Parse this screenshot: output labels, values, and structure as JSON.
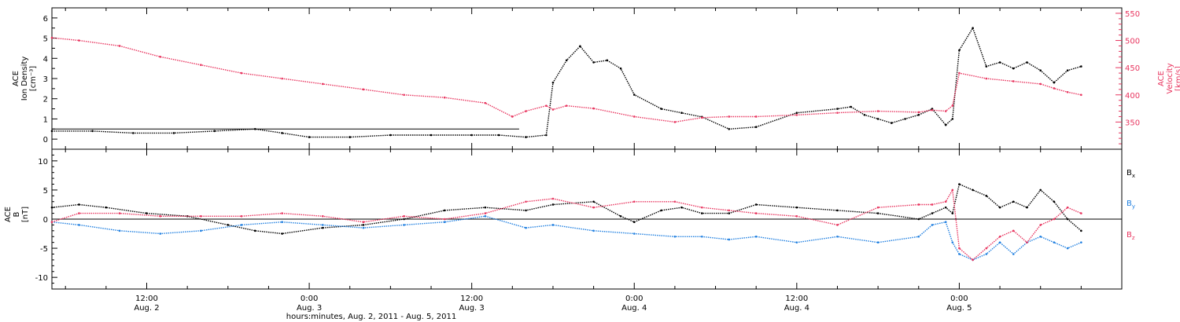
{
  "colors": {
    "black": "#000000",
    "velocity": "#e8355f",
    "bx": "#000000",
    "by": "#1f7fe0",
    "bz": "#e8355f"
  },
  "xaxis": {
    "title": "hours:minutes, Aug.  2, 2011 - Aug.  5, 2011",
    "start_hours": 5.0,
    "end_hours": 84.0
  },
  "chart_data": [
    {
      "type": "scatter",
      "panel": "top",
      "ylabel_left": [
        "ACE",
        "Ion Density",
        "[cm⁻³]"
      ],
      "ylabel_right": [
        "ACE",
        "Velocity",
        "[km/s]"
      ],
      "ylim_left": [
        -0.5,
        6.5
      ],
      "ylim_right": [
        300,
        560
      ],
      "left_ticks": [
        "0",
        "1",
        "2",
        "3",
        "4",
        "5",
        "6"
      ],
      "right_ticks": [
        "350",
        "400",
        "450",
        "500",
        "550"
      ],
      "series": [
        {
          "name": "Ion Density",
          "axis": "left",
          "x": [
            5,
            8,
            11,
            14,
            17,
            20,
            22,
            24,
            27,
            30,
            33,
            36,
            38,
            40,
            41.5,
            42,
            43,
            44,
            45,
            46,
            47,
            48,
            50,
            51.5,
            53,
            55,
            57,
            60,
            63,
            64,
            65,
            66,
            67,
            68,
            69,
            70,
            71,
            71.5,
            72,
            73,
            74,
            75,
            76,
            77,
            78,
            79,
            80,
            81
          ],
          "y": [
            0.4,
            0.4,
            0.3,
            0.3,
            0.4,
            0.5,
            0.3,
            0.1,
            0.1,
            0.2,
            0.2,
            0.2,
            0.2,
            0.1,
            0.2,
            2.8,
            3.9,
            4.6,
            3.8,
            3.9,
            3.5,
            2.2,
            1.5,
            1.3,
            1.1,
            0.5,
            0.6,
            1.3,
            1.5,
            1.6,
            1.2,
            1.0,
            0.8,
            1.0,
            1.2,
            1.5,
            0.7,
            1.0,
            4.4,
            5.5,
            3.6,
            3.8,
            3.5,
            3.8,
            3.4,
            2.8,
            3.4,
            3.6
          ]
        },
        {
          "name": "Velocity",
          "axis": "right",
          "x": [
            5,
            7,
            10,
            13,
            16,
            19,
            22,
            25,
            28,
            31,
            34,
            37,
            39,
            40,
            41.5,
            42,
            43,
            45,
            48,
            51,
            53,
            55,
            57,
            60,
            63,
            66,
            69,
            70,
            71,
            71.5,
            72,
            74,
            76,
            78,
            79,
            80,
            81
          ],
          "y": [
            505,
            500,
            490,
            470,
            455,
            440,
            430,
            420,
            410,
            400,
            395,
            385,
            360,
            370,
            380,
            373,
            380,
            375,
            360,
            350,
            358,
            360,
            360,
            363,
            367,
            370,
            368,
            372,
            370,
            380,
            440,
            430,
            425,
            420,
            412,
            405,
            400
          ]
        }
      ]
    },
    {
      "type": "line",
      "panel": "bottom",
      "ylabel": [
        "ACE",
        "B",
        "[nT]"
      ],
      "ylim": [
        -12,
        12
      ],
      "ticks": [
        "-10",
        "-5",
        "0",
        "5",
        "10"
      ],
      "series": [
        {
          "name": "Bx",
          "x": [
            5,
            7,
            9,
            12,
            15,
            18,
            20,
            22,
            25,
            28,
            31,
            34,
            37,
            40,
            42,
            45,
            47,
            48,
            50,
            51.5,
            53,
            55,
            57,
            60,
            63,
            66,
            69,
            70,
            71,
            71.5,
            72,
            73,
            74,
            75,
            76,
            77,
            78,
            79,
            80,
            81
          ],
          "y": [
            2.0,
            2.5,
            2.0,
            1.0,
            0.5,
            -1.0,
            -2.0,
            -2.5,
            -1.5,
            -1.0,
            0,
            1.5,
            2.0,
            1.5,
            2.5,
            3.0,
            0.5,
            -0.5,
            1.5,
            2.0,
            1.0,
            1.0,
            2.5,
            2.0,
            1.5,
            1.0,
            0,
            1.0,
            2.0,
            1.0,
            6.0,
            5.0,
            4.0,
            2.0,
            3.0,
            2.0,
            5.0,
            3.0,
            0,
            -2.0
          ]
        },
        {
          "name": "By",
          "x": [
            5,
            7,
            10,
            13,
            16,
            19,
            22,
            25,
            28,
            31,
            34,
            37,
            40,
            42,
            45,
            48,
            51,
            53,
            55,
            57,
            60,
            63,
            66,
            69,
            70,
            71,
            71.5,
            72,
            73,
            74,
            75,
            76,
            77,
            78,
            79,
            80,
            81
          ],
          "y": [
            -0.5,
            -1.0,
            -2.0,
            -2.5,
            -2.0,
            -1.0,
            -0.5,
            -1.0,
            -1.5,
            -1.0,
            -0.5,
            0.5,
            -1.5,
            -1.0,
            -2.0,
            -2.5,
            -3.0,
            -3.0,
            -3.5,
            -3.0,
            -4.0,
            -3.0,
            -4.0,
            -3.0,
            -1.0,
            -0.5,
            -4.0,
            -6.0,
            -7.0,
            -6.0,
            -4.0,
            -6.0,
            -4.0,
            -3.0,
            -4.0,
            -5.0,
            -4.0
          ]
        },
        {
          "name": "Bz",
          "x": [
            5,
            7,
            10,
            13,
            16,
            19,
            22,
            25,
            28,
            31,
            34,
            37,
            40,
            42,
            45,
            48,
            51,
            53,
            55,
            57,
            60,
            63,
            66,
            69,
            70,
            71,
            71.5,
            72,
            73,
            74,
            75,
            76,
            77,
            78,
            79,
            80,
            81
          ],
          "y": [
            -0.5,
            1.0,
            1.0,
            0.5,
            0.5,
            0.5,
            1.0,
            0.5,
            -0.5,
            0.5,
            0,
            1.0,
            3.0,
            3.5,
            2.0,
            3.0,
            3.0,
            2.0,
            1.5,
            1.0,
            0.5,
            -1.0,
            2.0,
            2.5,
            2.5,
            3.0,
            5.0,
            -5.0,
            -7.0,
            -5.0,
            -3.0,
            -2.0,
            -4.0,
            -1.0,
            0,
            2.0,
            1.0
          ]
        }
      ]
    }
  ],
  "labels": {
    "top_left": [
      "ACE",
      "Ion Density",
      "[cm⁻³]"
    ],
    "top_right": [
      "ACE",
      "Velocity",
      "[km/s]"
    ],
    "bottom_left": [
      "ACE",
      "B",
      "[nT]"
    ],
    "legend": [
      {
        "base": "B",
        "sub": "x"
      },
      {
        "base": "B",
        "sub": "y"
      },
      {
        "base": "B",
        "sub": "z"
      }
    ]
  },
  "x_ticks": [
    {
      "hours": 12,
      "time": "12:00",
      "date": "Aug. 2"
    },
    {
      "hours": 24,
      "time": "0:00",
      "date": "Aug. 3"
    },
    {
      "hours": 36,
      "time": "12:00",
      "date": "Aug. 3"
    },
    {
      "hours": 48,
      "time": "0:00",
      "date": "Aug. 4"
    },
    {
      "hours": 60,
      "time": "12:00",
      "date": "Aug. 4"
    },
    {
      "hours": 72,
      "time": "0:00",
      "date": "Aug. 5"
    }
  ]
}
